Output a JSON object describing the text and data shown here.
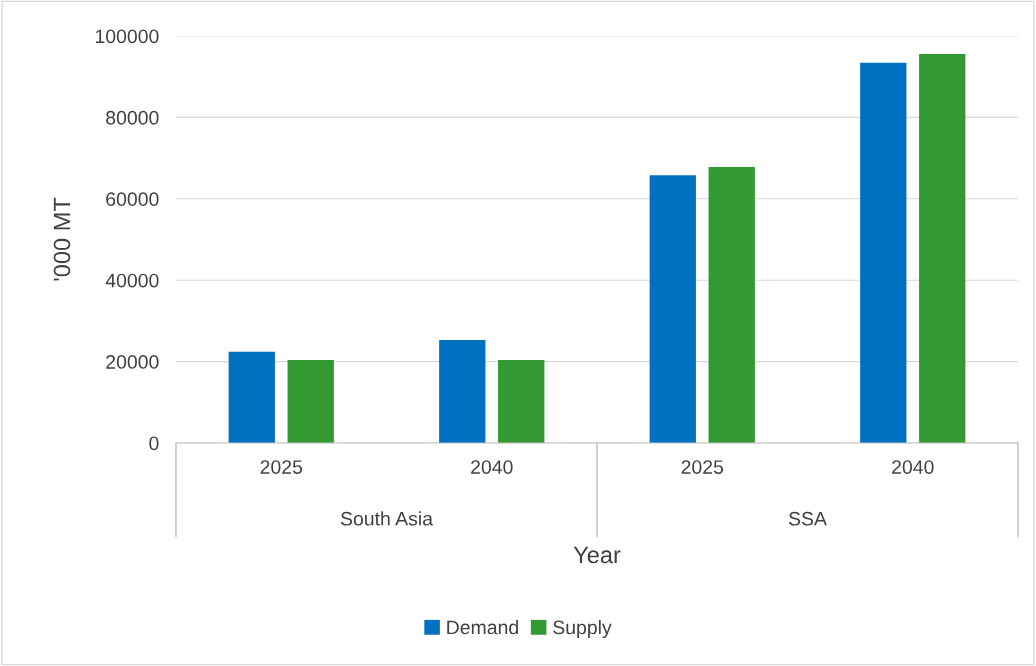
{
  "chart_data": {
    "type": "bar",
    "xlabel": "Year",
    "ylabel": "'000 MT",
    "categories": [
      "2025",
      "2040",
      "2025",
      "2040"
    ],
    "annotations": [
      "South Asia",
      "SSA"
    ],
    "series": [
      {
        "name": "Demand",
        "color": "#0070c0",
        "values": [
          22400,
          25300,
          65800,
          93400
        ]
      },
      {
        "name": "Supply",
        "color": "#339933",
        "values": [
          20400,
          20400,
          67800,
          95600
        ]
      }
    ],
    "ylim": [
      0,
      100000
    ],
    "yticks": [
      0,
      20000,
      40000,
      60000,
      80000,
      100000
    ],
    "grid": "y",
    "legend": "bottom"
  }
}
